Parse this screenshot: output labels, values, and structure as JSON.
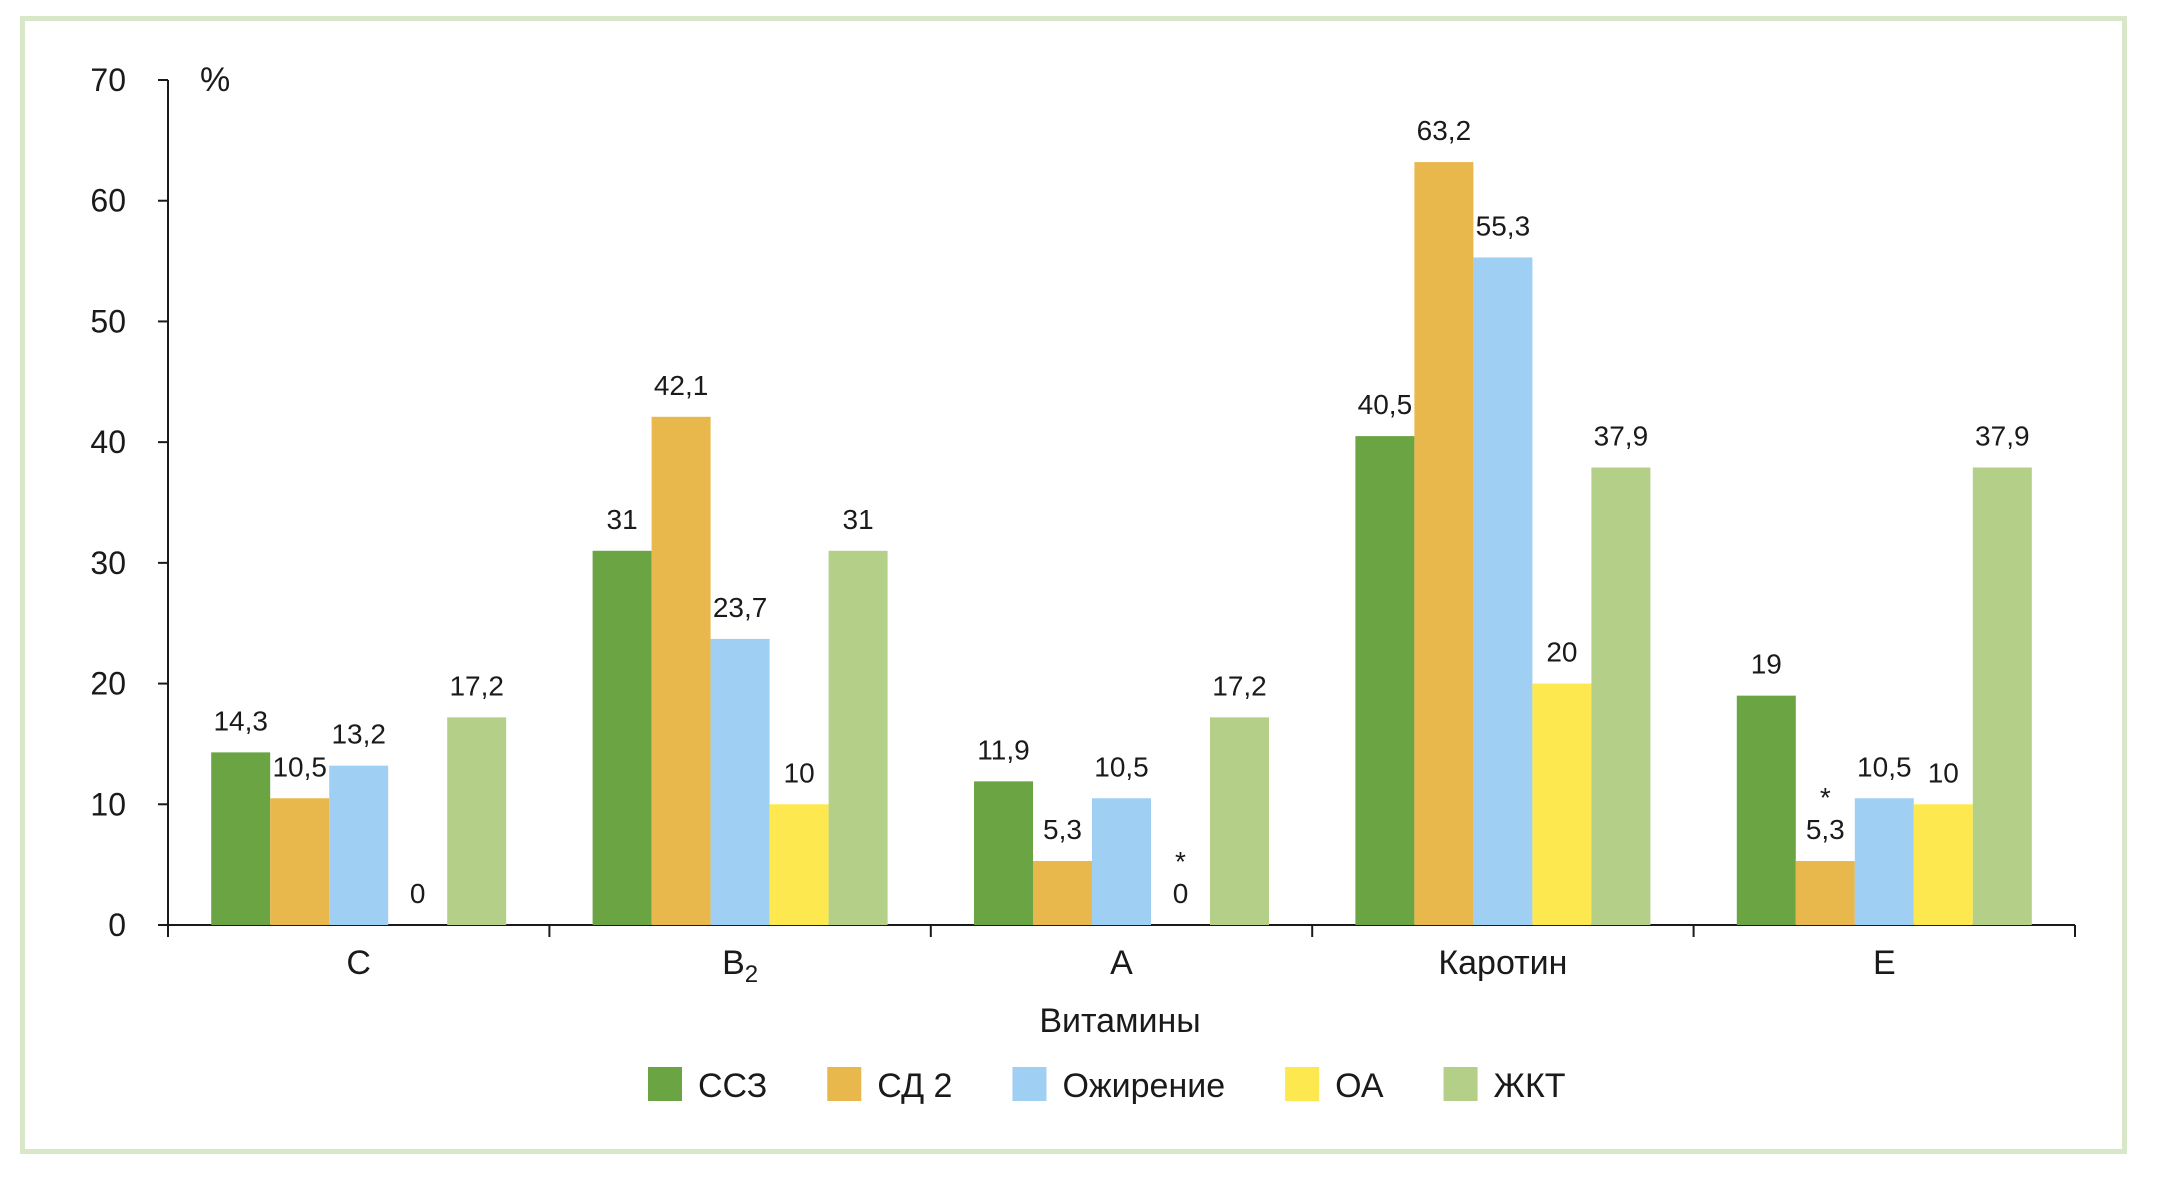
{
  "chart_data": {
    "type": "bar",
    "ylabel": "%",
    "xlabel": "Витамины",
    "ylim": [
      0,
      70
    ],
    "yticks": [
      0,
      10,
      20,
      30,
      40,
      50,
      60,
      70
    ],
    "categories": [
      {
        "label": "C",
        "sub": ""
      },
      {
        "label": "B",
        "sub": "2"
      },
      {
        "label": "A",
        "sub": ""
      },
      {
        "label": "Каротин",
        "sub": ""
      },
      {
        "label": "E",
        "sub": ""
      }
    ],
    "series": [
      {
        "name": "ССЗ",
        "color": "#6aa443",
        "values": [
          14.3,
          31,
          11.9,
          40.5,
          19
        ],
        "labels": [
          "14,3",
          "31",
          "11,9",
          "40,5",
          "19"
        ],
        "asterisk": [
          false,
          false,
          false,
          false,
          false
        ]
      },
      {
        "name": "СД 2",
        "color": "#e9b84d",
        "values": [
          10.5,
          42.1,
          5.3,
          63.2,
          5.3
        ],
        "labels": [
          "10,5",
          "42,1",
          "5,3",
          "63,2",
          "5,3"
        ],
        "asterisk": [
          false,
          false,
          false,
          false,
          true
        ]
      },
      {
        "name": "Ожирение",
        "color": "#9fcff3",
        "values": [
          13.2,
          23.7,
          10.5,
          55.3,
          10.5
        ],
        "labels": [
          "13,2",
          "23,7",
          "10,5",
          "55,3",
          "10,5"
        ],
        "asterisk": [
          false,
          false,
          false,
          false,
          false
        ]
      },
      {
        "name": "ОА",
        "color": "#fde94f",
        "values": [
          0,
          10,
          0,
          20,
          10
        ],
        "labels": [
          "0",
          "10",
          "0",
          "20",
          "10"
        ],
        "asterisk": [
          false,
          false,
          true,
          false,
          false
        ]
      },
      {
        "name": "ЖКТ",
        "color": "#b4cf87",
        "values": [
          17.2,
          31,
          17.2,
          37.9,
          37.9
        ],
        "labels": [
          "17,2",
          "31",
          "17,2",
          "37,9",
          "37,9"
        ],
        "asterisk": [
          false,
          false,
          false,
          false,
          false
        ]
      }
    ],
    "asterisk_symbol": "*",
    "legend_position": "bottom"
  }
}
